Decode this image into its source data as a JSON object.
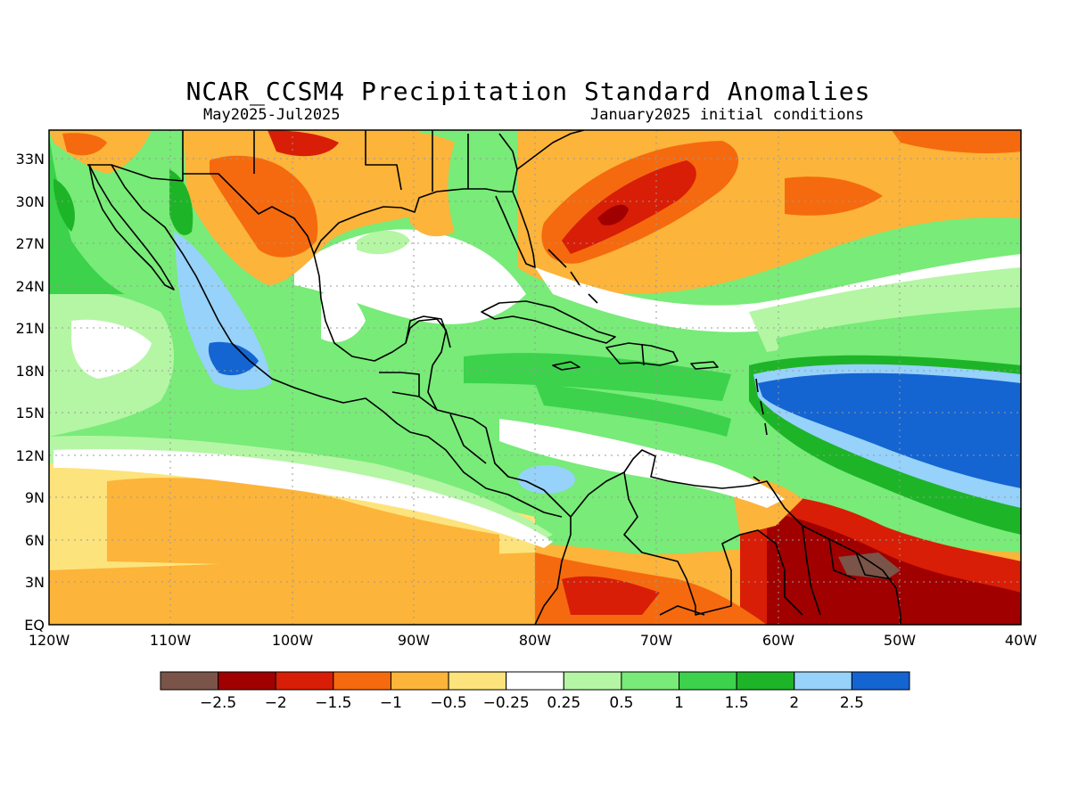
{
  "title": "NCAR_CCSM4 Precipitation Standard Anomalies",
  "subtitle_left": "May2025-Jul2025",
  "subtitle_right": "January2025 initial conditions",
  "lat_ticks": [
    "33N",
    "30N",
    "27N",
    "24N",
    "21N",
    "18N",
    "15N",
    "12N",
    "9N",
    "6N",
    "3N",
    "EQ"
  ],
  "lon_ticks": [
    "120W",
    "110W",
    "100W",
    "90W",
    "80W",
    "70W",
    "60W",
    "50W",
    "40W"
  ],
  "colorbar": {
    "colors": [
      "#7a5448",
      "#a00000",
      "#d81e06",
      "#f56a0e",
      "#fcb43a",
      "#fde37c",
      "#ffffff",
      "#b4f6a4",
      "#78eb78",
      "#3cd24c",
      "#1eb428",
      "#96d2fa",
      "#1464d2"
    ],
    "labels": [
      "-2.5",
      "-2",
      "-1.5",
      "-1",
      "-0.5",
      "-0.25",
      "0.25",
      "0.5",
      "1",
      "1.5",
      "2",
      "2.5"
    ]
  }
}
